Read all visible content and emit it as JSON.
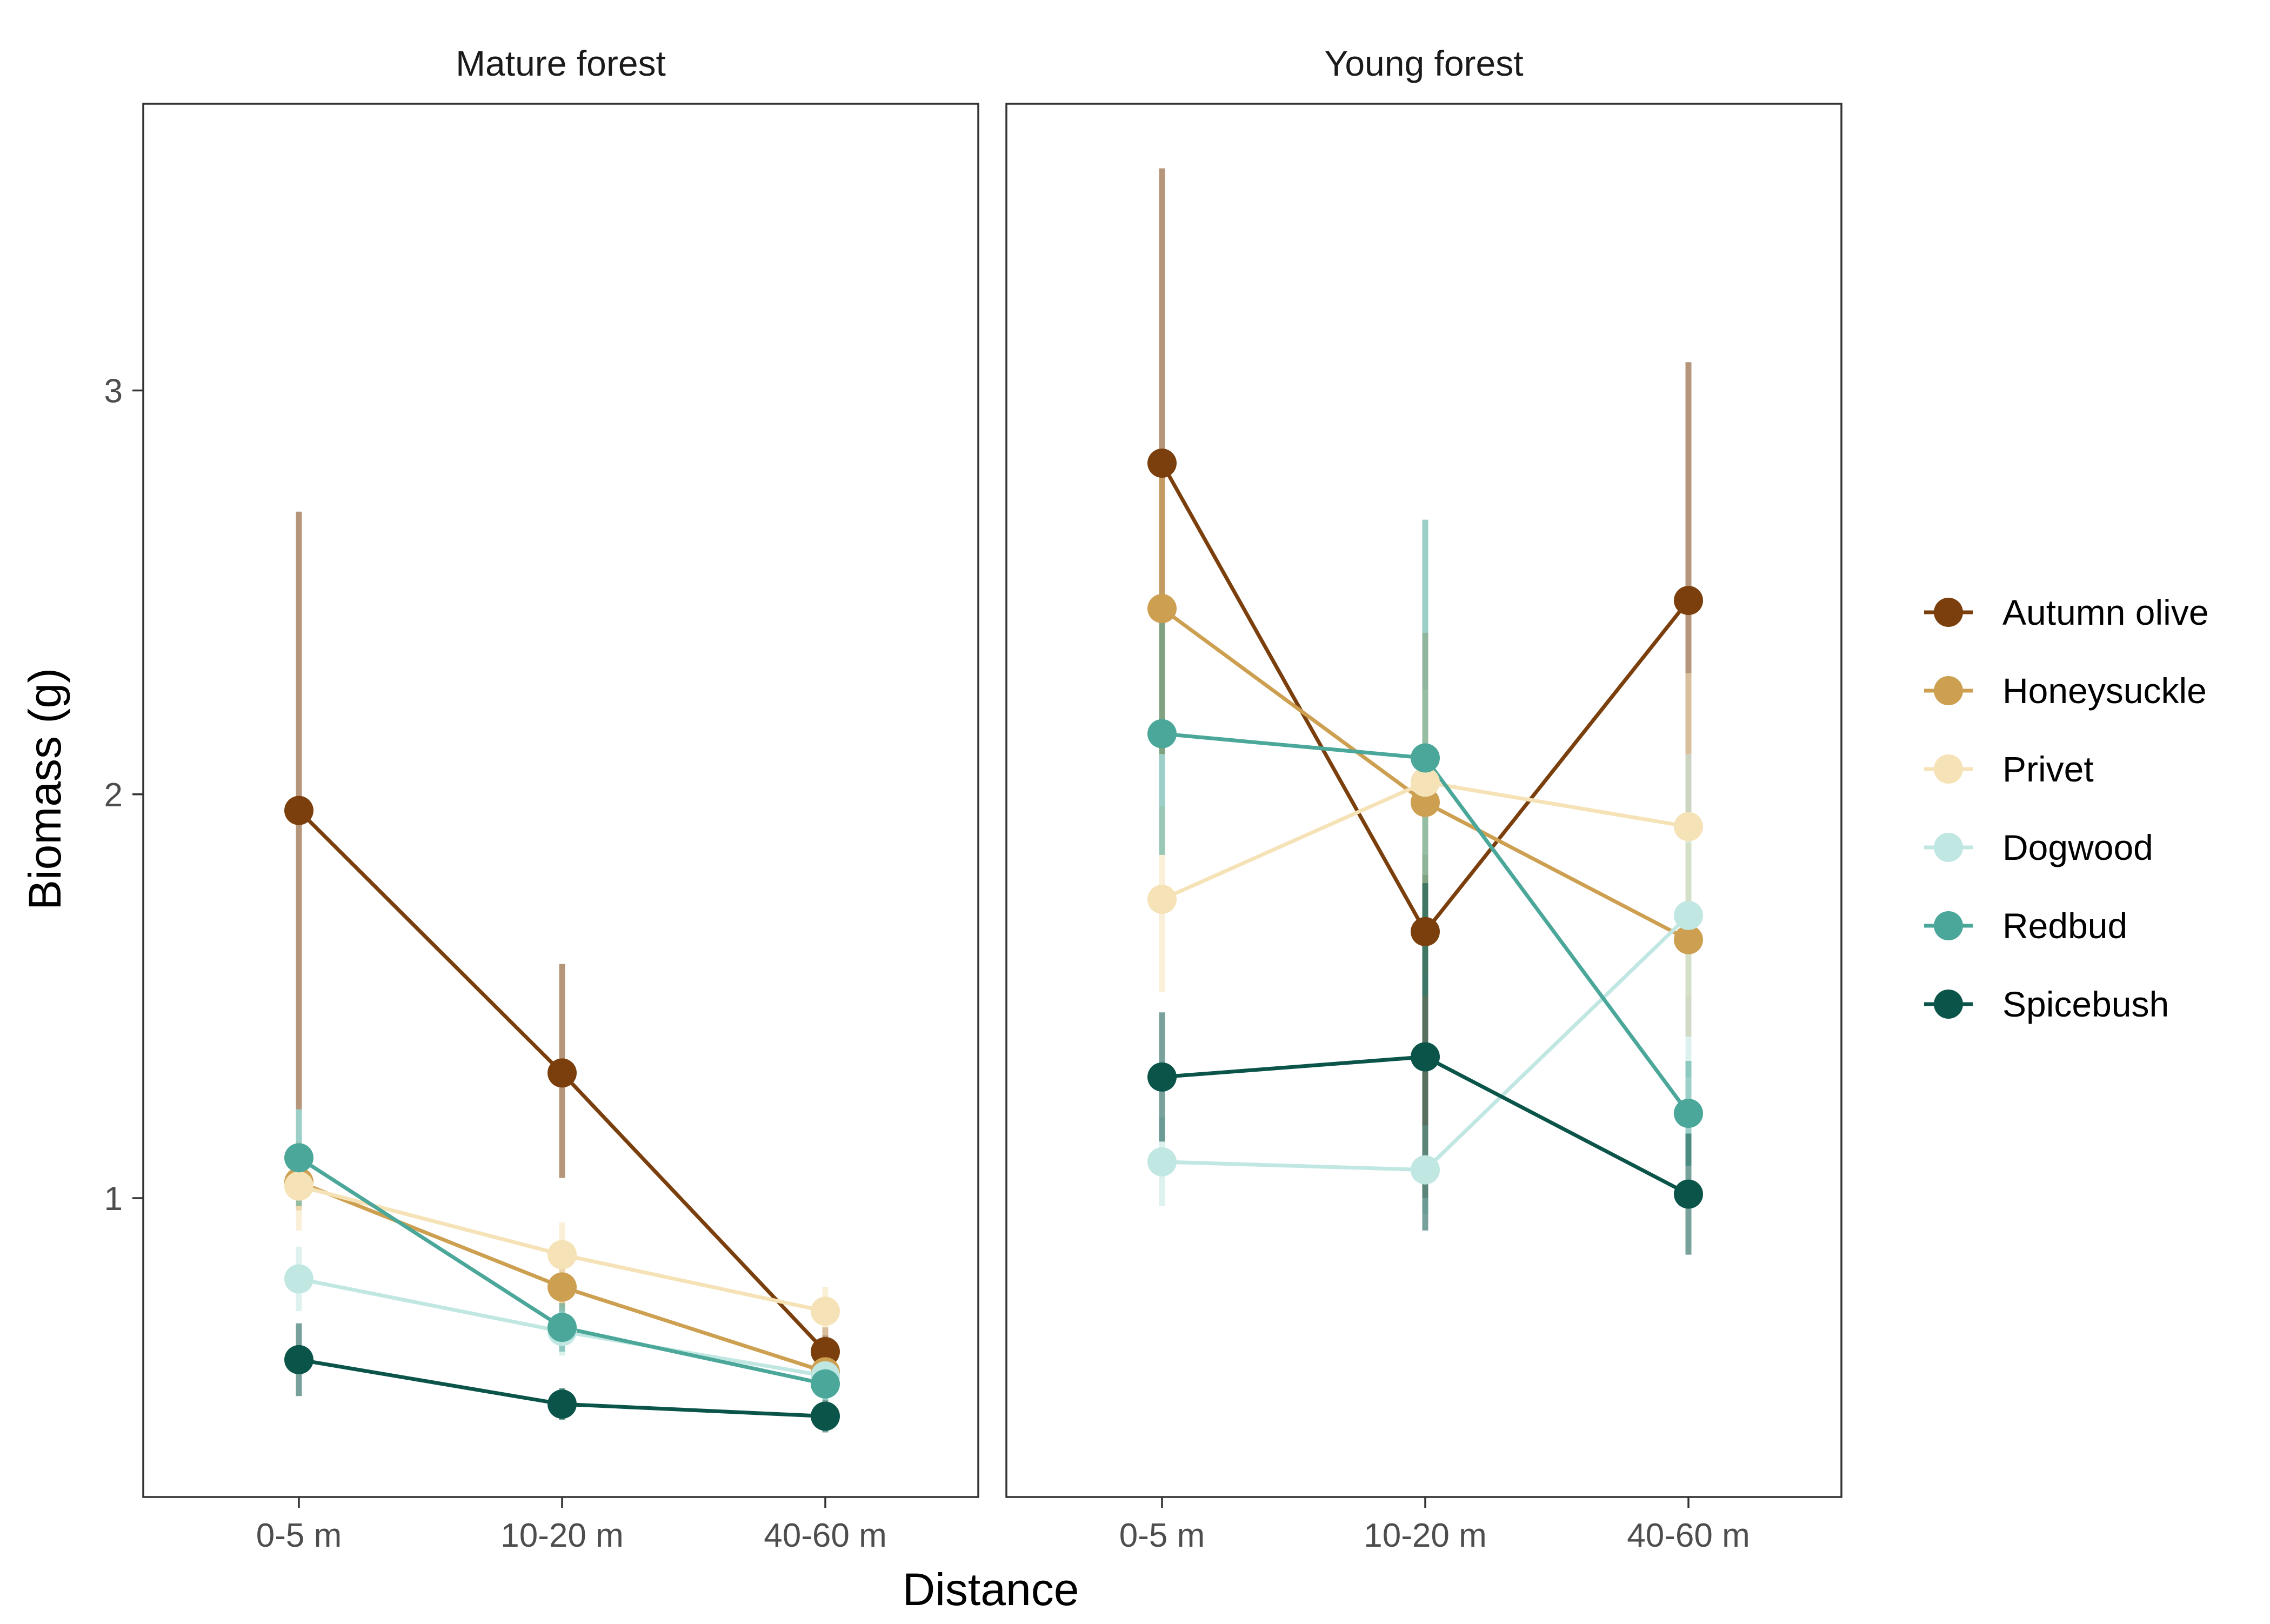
{
  "chart_data": {
    "type": "line",
    "xlabel": "Distance",
    "ylabel": "Biomass (g)",
    "categories": [
      "0-5 m",
      "10-20 m",
      "40-60 m"
    ],
    "yticks": [
      1,
      2,
      3
    ],
    "ylim": [
      0.26,
      3.71
    ],
    "grid": false,
    "legend_position": "right",
    "panels": [
      {
        "title": "Mature forest",
        "series": [
          {
            "name": "Autumn olive",
            "values": [
              1.96,
              1.31,
              0.62
            ],
            "lower": [
              1.22,
              1.05,
              0.56
            ],
            "upper": [
              2.7,
              1.58,
              0.68
            ]
          },
          {
            "name": "Honeysuckle",
            "values": [
              1.04,
              0.78,
              0.57
            ],
            "lower": [
              0.97,
              0.72,
              0.54
            ],
            "upper": [
              1.12,
              0.84,
              0.6
            ]
          },
          {
            "name": "Privet",
            "values": [
              1.03,
              0.86,
              0.72
            ],
            "lower": [
              0.92,
              0.78,
              0.66
            ],
            "upper": [
              1.14,
              0.94,
              0.78
            ]
          },
          {
            "name": "Dogwood",
            "values": [
              0.8,
              0.67,
              0.56
            ],
            "lower": [
              0.72,
              0.61,
              0.52
            ],
            "upper": [
              0.88,
              0.73,
              0.6
            ]
          },
          {
            "name": "Redbud",
            "values": [
              1.1,
              0.68,
              0.54
            ],
            "lower": [
              0.98,
              0.62,
              0.5
            ],
            "upper": [
              1.22,
              0.74,
              0.58
            ]
          },
          {
            "name": "Spicebush",
            "values": [
              0.6,
              0.49,
              0.46
            ],
            "lower": [
              0.51,
              0.45,
              0.42
            ],
            "upper": [
              0.69,
              0.53,
              0.5
            ]
          }
        ]
      },
      {
        "title": "Young forest",
        "series": [
          {
            "name": "Autumn olive",
            "values": [
              2.82,
              1.66,
              2.48
            ],
            "lower": [
              2.1,
              1.0,
              1.9
            ],
            "upper": [
              3.55,
              1.85,
              3.07
            ]
          },
          {
            "name": "Honeysuckle",
            "values": [
              2.46,
              1.98,
              1.64
            ],
            "lower": [
              2.1,
              1.56,
              1.4
            ],
            "upper": [
              2.82,
              2.4,
              1.88
            ]
          },
          {
            "name": "Privet",
            "values": [
              1.74,
              2.03,
              1.92
            ],
            "lower": [
              1.51,
              1.8,
              1.5
            ],
            "upper": [
              1.97,
              2.26,
              2.3
            ]
          },
          {
            "name": "Dogwood",
            "values": [
              1.09,
              1.07,
              1.7
            ],
            "lower": [
              0.98,
              0.96,
              1.3
            ],
            "upper": [
              1.2,
              1.18,
              2.1
            ]
          },
          {
            "name": "Redbud",
            "values": [
              2.15,
              2.09,
              1.21
            ],
            "lower": [
              1.85,
              1.5,
              1.08
            ],
            "upper": [
              2.45,
              2.68,
              1.34
            ]
          },
          {
            "name": "Spicebush",
            "values": [
              1.3,
              1.35,
              1.01
            ],
            "lower": [
              1.14,
              0.92,
              0.86
            ],
            "upper": [
              1.46,
              1.78,
              1.16
            ]
          }
        ]
      }
    ],
    "colors": {
      "Autumn olive": "#7A3F0C",
      "Honeysuckle": "#CDA051",
      "Privet": "#F5E2B6",
      "Dogwood": "#C1E7E2",
      "Redbud": "#4AA79A",
      "Spicebush": "#0B5449"
    },
    "legend": [
      "Autumn olive",
      "Honeysuckle",
      "Privet",
      "Dogwood",
      "Redbud",
      "Spicebush"
    ]
  }
}
